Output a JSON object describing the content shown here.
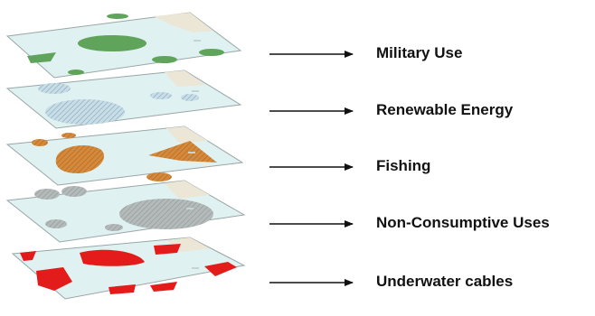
{
  "diagram": {
    "type": "stacked-map-layers",
    "colors": {
      "sea": "#dff1f1",
      "land": "#ece6d6",
      "layer_edge": "#9aa6a6",
      "arrow": "#111111"
    },
    "layers": [
      {
        "label": "Military Use",
        "fill": "#5fa45a",
        "pattern": "solid"
      },
      {
        "label": "Renewable Energy",
        "fill": "#a9c6d6",
        "pattern": "hatched"
      },
      {
        "label": "Fishing",
        "fill": "#d07c2c",
        "pattern": "hatched"
      },
      {
        "label": "Non-Consumptive Uses",
        "fill": "#a7aeae",
        "pattern": "hatched"
      },
      {
        "label": "Underwater cables",
        "fill": "#e31b1b",
        "pattern": "solid"
      }
    ]
  }
}
